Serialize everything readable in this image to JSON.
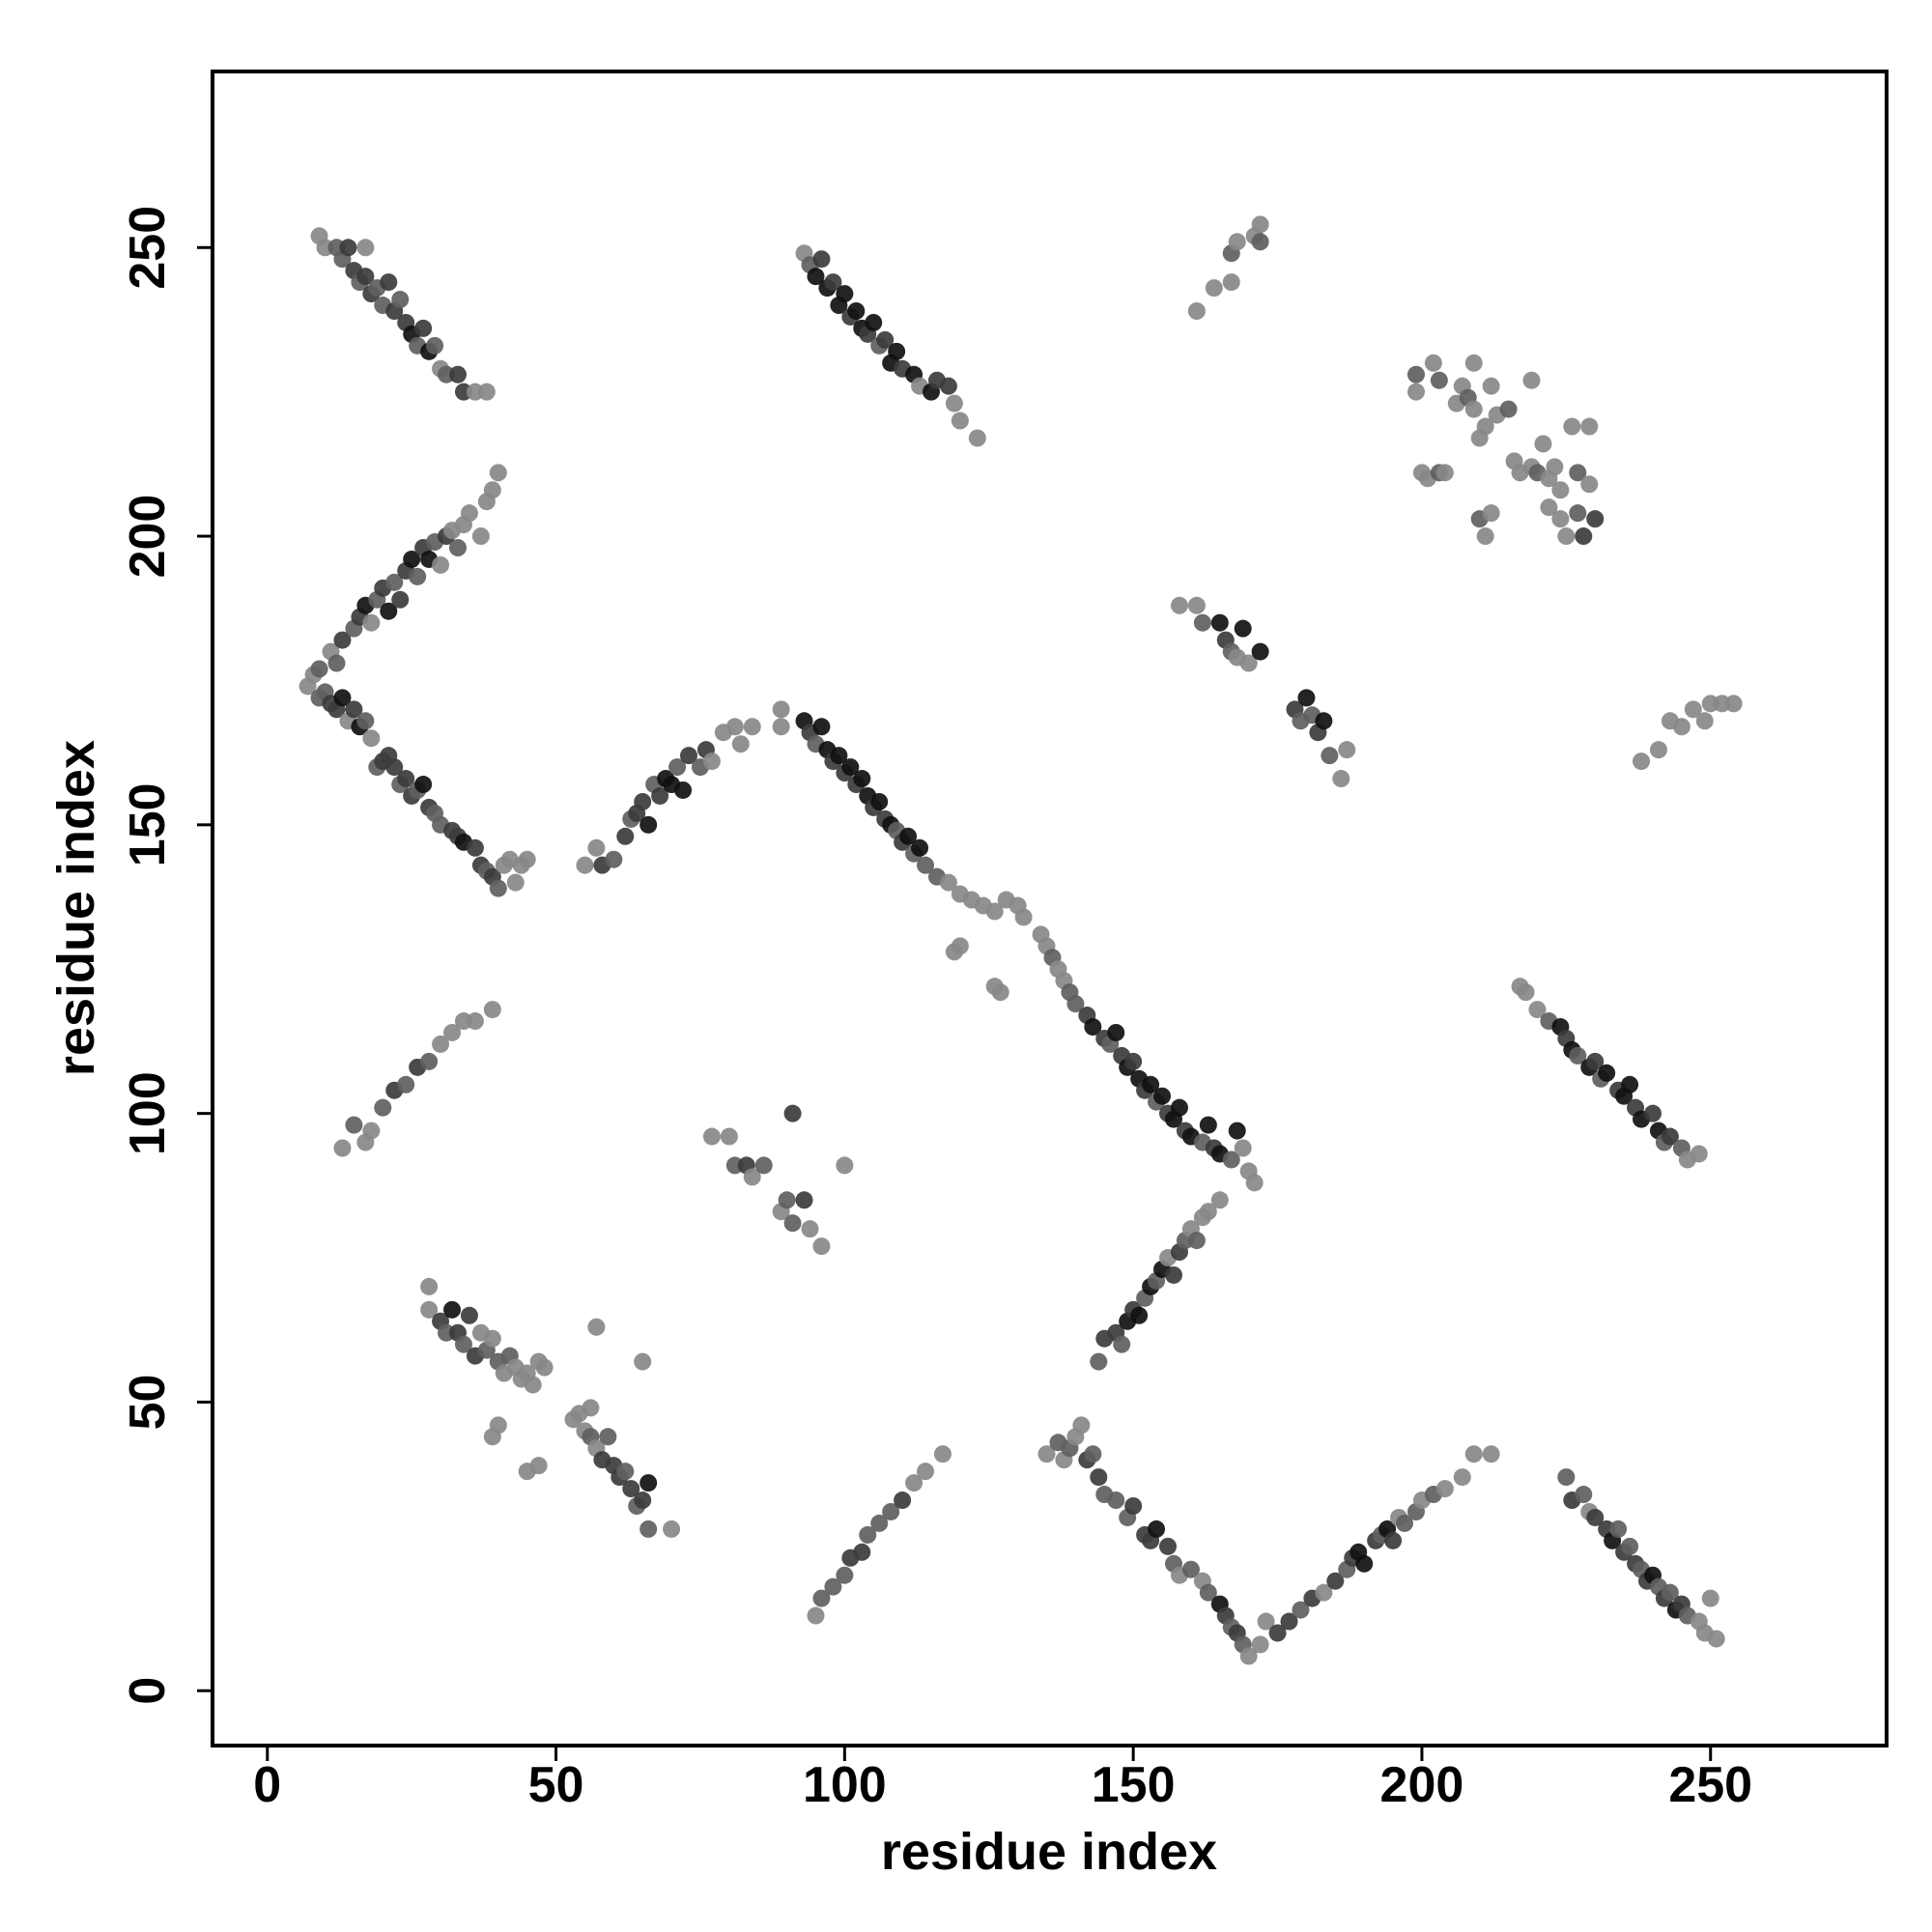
{
  "chart_data": {
    "type": "scatter",
    "xlabel": "residue index",
    "ylabel": "residue index",
    "xlim": [
      -9.5,
      280.5
    ],
    "ylim": [
      -9.5,
      280.5
    ],
    "xticks": [
      0,
      50,
      100,
      150,
      200,
      250
    ],
    "yticks": [
      0,
      50,
      100,
      150,
      200,
      250
    ],
    "x": [
      9,
      10,
      12,
      13,
      14,
      15,
      16,
      17,
      17,
      18,
      19,
      20,
      21,
      22,
      23,
      24,
      25,
      26,
      27,
      28,
      29,
      30,
      31,
      33,
      34,
      36,
      38,
      93,
      94,
      95,
      96,
      97,
      98,
      99,
      100,
      101,
      102,
      103,
      104,
      105,
      106,
      107,
      108,
      109,
      110,
      112,
      113,
      115,
      116,
      118,
      119,
      120,
      123,
      161,
      164,
      167,
      167,
      168,
      171,
      172,
      172,
      199,
      199,
      200,
      201,
      202,
      203,
      203,
      204,
      206,
      207,
      208,
      209,
      209,
      210,
      210,
      211,
      211,
      212,
      212,
      213,
      215,
      216,
      217,
      219,
      219,
      220,
      221,
      222,
      222,
      223,
      224,
      224,
      225,
      226,
      227,
      227,
      228,
      229,
      229,
      230,
      7,
      8,
      9,
      10,
      11,
      12,
      13,
      15,
      16,
      17,
      18,
      19,
      20,
      21,
      22,
      23,
      24,
      25,
      26,
      27,
      28,
      29,
      30,
      31,
      32,
      33,
      34,
      35,
      37,
      38,
      39,
      40,
      9,
      11,
      12,
      13,
      14,
      15,
      16,
      17,
      18,
      19,
      20,
      21,
      22,
      23,
      24,
      25,
      26,
      27,
      28,
      29,
      30,
      32,
      33,
      34,
      36,
      37,
      38,
      39,
      40,
      41,
      42,
      43,
      44,
      45,
      55,
      57,
      58,
      60,
      62,
      63,
      64,
      65,
      66,
      67,
      68,
      69,
      70,
      71,
      72,
      73,
      75,
      76,
      77,
      79,
      81,
      82,
      84,
      89,
      89,
      93,
      94,
      95,
      96,
      97,
      98,
      99,
      100,
      101,
      102,
      103,
      104,
      105,
      106,
      107,
      108,
      109,
      110,
      111,
      112,
      113,
      114,
      116,
      118,
      120,
      122,
      124,
      126,
      128,
      130,
      131,
      134,
      135,
      136,
      137,
      138,
      139,
      140,
      142,
      143,
      145,
      146,
      147,
      148,
      149,
      150,
      151,
      152,
      153,
      154,
      155,
      156,
      157,
      158,
      159,
      160,
      162,
      163,
      164,
      165,
      167,
      168,
      169,
      170,
      171,
      119,
      120,
      126,
      127,
      158,
      161,
      162,
      165,
      166,
      167,
      168,
      169,
      170,
      172,
      178,
      179,
      180,
      181,
      182,
      183,
      184,
      186,
      187,
      238,
      241,
      243,
      245,
      247,
      249,
      250,
      252,
      254,
      217,
      218,
      220,
      222,
      224,
      225,
      226,
      227,
      229,
      230,
      231,
      232,
      234,
      235,
      236,
      237,
      238,
      240,
      241,
      242,
      243,
      245,
      246,
      248,
      13,
      15,
      17,
      18,
      20,
      22,
      24,
      26,
      28,
      30,
      32,
      34,
      36,
      39,
      77,
      80,
      81,
      83,
      84,
      86,
      89,
      90,
      91,
      91,
      93,
      94,
      96,
      100,
      28,
      28,
      30,
      31,
      32,
      33,
      34,
      35,
      36,
      37,
      38,
      39,
      40,
      41,
      42,
      43,
      44,
      45,
      46,
      47,
      48,
      39,
      40,
      45,
      47,
      53,
      54,
      55,
      56,
      56,
      57,
      57,
      58,
      59,
      60,
      61,
      62,
      63,
      64,
      65,
      66,
      66,
      65,
      70,
      95,
      96,
      98,
      100,
      101,
      103,
      104,
      106,
      108,
      110,
      112,
      114,
      117,
      135,
      137,
      138,
      139,
      140,
      141,
      142,
      143,
      144,
      145,
      147,
      149,
      150,
      152,
      153,
      154,
      156,
      157,
      158,
      160,
      162,
      163,
      165,
      166,
      167,
      168,
      169,
      170,
      172,
      173,
      175,
      177,
      179,
      181,
      183,
      185,
      187,
      188,
      189,
      190,
      192,
      193,
      194,
      195,
      196,
      197,
      199,
      200,
      202,
      204,
      207,
      209,
      212,
      144,
      145,
      147,
      148,
      149,
      150,
      151,
      152,
      153,
      154,
      155,
      156,
      157,
      158,
      159,
      160,
      161,
      162,
      163,
      165,
      225,
      226,
      228,
      229,
      230,
      232,
      233,
      234,
      235,
      236,
      237,
      238,
      239,
      240,
      241,
      242,
      243,
      244,
      245,
      246,
      248,
      249,
      251,
      250
    ],
    "y": [
      252,
      250,
      250,
      248,
      250,
      246,
      244,
      245,
      250,
      242,
      243,
      240,
      244,
      239,
      241,
      237,
      235,
      233,
      236,
      232,
      233,
      229,
      228,
      228,
      225,
      225,
      225,
      249,
      247,
      245,
      248,
      243,
      244,
      240,
      242,
      238,
      239,
      236,
      235,
      237,
      233,
      234,
      230,
      232,
      229,
      228,
      226,
      225,
      227,
      226,
      223,
      220,
      217,
      239,
      243,
      244,
      249,
      251,
      252,
      254,
      251,
      228,
      225,
      211,
      210,
      230,
      227,
      211,
      211,
      223,
      226,
      224,
      222,
      230,
      203,
      217,
      219,
      200,
      204,
      226,
      221,
      222,
      213,
      211,
      227,
      212,
      211,
      216,
      210,
      205,
      212,
      203,
      208,
      200,
      219,
      211,
      204,
      200,
      219,
      209,
      203,
      174,
      176,
      177,
      173,
      180,
      178,
      182,
      184,
      186,
      188,
      185,
      189,
      191,
      187,
      192,
      189,
      194,
      196,
      193,
      198,
      196,
      199,
      195,
      200,
      201,
      198,
      202,
      204,
      200,
      206,
      208,
      211,
      172,
      171,
      170,
      172,
      168,
      170,
      167,
      168,
      165,
      160,
      161,
      162,
      160,
      157,
      158,
      155,
      156,
      157,
      153,
      152,
      150,
      149,
      148,
      147,
      146,
      143,
      142,
      141,
      139,
      143,
      144,
      140,
      143,
      144,
      143,
      146,
      143,
      144,
      148,
      151,
      152,
      154,
      150,
      157,
      155,
      158,
      157,
      160,
      156,
      162,
      160,
      163,
      161,
      166,
      167,
      164,
      167,
      170,
      167,
      168,
      166,
      164,
      167,
      163,
      161,
      162,
      159,
      160,
      157,
      158,
      155,
      153,
      154,
      151,
      150,
      149,
      147,
      148,
      145,
      146,
      143,
      141,
      140,
      138,
      137,
      136,
      135,
      137,
      136,
      134,
      131,
      129,
      127,
      125,
      123,
      121,
      119,
      117,
      115,
      113,
      112,
      114,
      110,
      108,
      109,
      106,
      104,
      105,
      102,
      103,
      100,
      99,
      101,
      97,
      96,
      95,
      98,
      94,
      93,
      92,
      97,
      94,
      90,
      88,
      128,
      129,
      122,
      121,
      188,
      188,
      185,
      185,
      182,
      180,
      179,
      184,
      178,
      180,
      170,
      168,
      172,
      169,
      166,
      168,
      162,
      158,
      163,
      161,
      163,
      168,
      167,
      170,
      168,
      171,
      171,
      171,
      122,
      121,
      118,
      116,
      115,
      113,
      111,
      110,
      108,
      109,
      106,
      107,
      104,
      103,
      105,
      101,
      99,
      100,
      97,
      95,
      96,
      94,
      92,
      93,
      94,
      98,
      95,
      97,
      101,
      104,
      105,
      108,
      109,
      112,
      114,
      116,
      116,
      118,
      96,
      96,
      91,
      91,
      89,
      91,
      83,
      85,
      81,
      100,
      85,
      80,
      77,
      91,
      70,
      66,
      64,
      62,
      66,
      62,
      60,
      65,
      58,
      62,
      59,
      61,
      57,
      55,
      58,
      56,
      54,
      55,
      53,
      57,
      56,
      44,
      46,
      38,
      39,
      47,
      48,
      45,
      49,
      44,
      42,
      63,
      40,
      44,
      39,
      37,
      38,
      35,
      32,
      33,
      28,
      36,
      57,
      28,
      13,
      16,
      18,
      20,
      23,
      24,
      27,
      29,
      31,
      33,
      36,
      38,
      41,
      41,
      43,
      40,
      42,
      44,
      46,
      40,
      41,
      37,
      34,
      33,
      30,
      32,
      27,
      26,
      28,
      25,
      22,
      20,
      21,
      19,
      17,
      15,
      13,
      11,
      10,
      8,
      6,
      8,
      12,
      10,
      12,
      14,
      16,
      17,
      19,
      21,
      23,
      24,
      22,
      26,
      27,
      28,
      26,
      30,
      29,
      31,
      33,
      34,
      35,
      37,
      41,
      41,
      57,
      61,
      62,
      60,
      64,
      66,
      65,
      68,
      70,
      71,
      73,
      75,
      72,
      76,
      78,
      80,
      78,
      82,
      83,
      85,
      37,
      33,
      34,
      31,
      30,
      28,
      26,
      28,
      24,
      25,
      22,
      21,
      19,
      20,
      18,
      16,
      17,
      14,
      15,
      13,
      12,
      10,
      9,
      16
    ],
    "colors": [
      "#888",
      "#888",
      "#606060",
      "#606060",
      "#3c3c3c",
      "#3c3c3c",
      "#606060",
      "#3c3c3c",
      "#888",
      "#3c3c3c",
      "#606060",
      "#606060",
      "#3c3c3c",
      "#3c3c3c",
      "#606060",
      "#3c3c3c",
      "#111",
      "#606060",
      "#3c3c3c",
      "#111",
      "#606060",
      "#888",
      "#606060",
      "#3c3c3c",
      "#3c3c3c",
      "#888",
      "#888",
      "#888",
      "#606060",
      "#111",
      "#3c3c3c",
      "#111",
      "#3c3c3c",
      "#111",
      "#111",
      "#3c3c3c",
      "#111",
      "#111",
      "#3c3c3c",
      "#111",
      "#606060",
      "#3c3c3c",
      "#111",
      "#111",
      "#3c3c3c",
      "#111",
      "#888",
      "#111",
      "#3c3c3c",
      "#3c3c3c",
      "#888",
      "#888",
      "#888",
      "#888",
      "#888",
      "#888",
      "#606060",
      "#888",
      "#888",
      "#888",
      "#606060",
      "#606060",
      "#888",
      "#888",
      "#888",
      "#888",
      "#606060",
      "#606060",
      "#888",
      "#888",
      "#888",
      "#606060",
      "#888",
      "#888",
      "#606060",
      "#888",
      "#888",
      "#888",
      "#888",
      "#888",
      "#888",
      "#606060",
      "#888",
      "#888",
      "#888",
      "#888",
      "#606060",
      "#888",
      "#888",
      "#888",
      "#888",
      "#888",
      "#888",
      "#888",
      "#888",
      "#606060",
      "#606060",
      "#3c3c3c",
      "#888",
      "#888",
      "#3c3c3c",
      "#888",
      "#888",
      "#606060",
      "#606060",
      "#888",
      "#606060",
      "#3c3c3c",
      "#606060",
      "#3c3c3c",
      "#111",
      "#888",
      "#606060",
      "#3c3c3c",
      "#111",
      "#606060",
      "#3c3c3c",
      "#3c3c3c",
      "#111",
      "#606060",
      "#3c3c3c",
      "#111",
      "#606060",
      "#888",
      "#3c3c3c",
      "#888",
      "#606060",
      "#888",
      "#888",
      "#888",
      "#888",
      "#888",
      "#888",
      "#606060",
      "#3c3c3c",
      "#3c3c3c",
      "#111",
      "#888",
      "#3c3c3c",
      "#111",
      "#606060",
      "#888",
      "#606060",
      "#3c3c3c",
      "#3c3c3c",
      "#3c3c3c",
      "#606060",
      "#3c3c3c",
      "#3c3c3c",
      "#606060",
      "#111",
      "#3c3c3c",
      "#606060",
      "#606060",
      "#3c3c3c",
      "#3c3c3c",
      "#111",
      "#3c3c3c",
      "#3c3c3c",
      "#606060",
      "#3c3c3c",
      "#606060",
      "#888",
      "#888",
      "#888",
      "#888",
      "#888",
      "#888",
      "#888",
      "#3c3c3c",
      "#606060",
      "#3c3c3c",
      "#606060",
      "#3c3c3c",
      "#3c3c3c",
      "#111",
      "#606060",
      "#3c3c3c",
      "#111",
      "#111",
      "#606060",
      "#111",
      "#3c3c3c",
      "#606060",
      "#3c3c3c",
      "#888",
      "#888",
      "#888",
      "#888",
      "#888",
      "#888",
      "#888",
      "#111",
      "#3c3c3c",
      "#606060",
      "#111",
      "#111",
      "#3c3c3c",
      "#111",
      "#3c3c3c",
      "#111",
      "#3c3c3c",
      "#111",
      "#111",
      "#3c3c3c",
      "#111",
      "#3c3c3c",
      "#111",
      "#606060",
      "#3c3c3c",
      "#111",
      "#606060",
      "#111",
      "#606060",
      "#606060",
      "#888",
      "#888",
      "#888",
      "#888",
      "#888",
      "#888",
      "#888",
      "#888",
      "#888",
      "#888",
      "#606060",
      "#888",
      "#888",
      "#606060",
      "#606060",
      "#3c3c3c",
      "#111",
      "#3c3c3c",
      "#606060",
      "#111",
      "#3c3c3c",
      "#111",
      "#3c3c3c",
      "#111",
      "#3c3c3c",
      "#111",
      "#606060",
      "#111",
      "#3c3c3c",
      "#111",
      "#111",
      "#3c3c3c",
      "#111",
      "#606060",
      "#111",
      "#3c3c3c",
      "#111",
      "#606060",
      "#111",
      "#888",
      "#888",
      "#888",
      "#888",
      "#888",
      "#888",
      "#888",
      "#888",
      "#888",
      "#606060",
      "#111",
      "#3c3c3c",
      "#606060",
      "#888",
      "#111",
      "#888",
      "#111",
      "#3c3c3c",
      "#606060",
      "#111",
      "#606060",
      "#3c3c3c",
      "#111",
      "#606060",
      "#888",
      "#888",
      "#888",
      "#888",
      "#888",
      "#888",
      "#888",
      "#888",
      "#888",
      "#888",
      "#888",
      "#888",
      "#888",
      "#888",
      "#606060",
      "#111",
      "#3c3c3c",
      "#111",
      "#606060",
      "#111",
      "#3c3c3c",
      "#606060",
      "#111",
      "#3c3c3c",
      "#111",
      "#111",
      "#3c3c3c",
      "#111",
      "#3c3c3c",
      "#111",
      "#606060",
      "#3c3c3c",
      "#606060",
      "#888",
      "#888",
      "#888",
      "#606060",
      "#888",
      "#888",
      "#606060",
      "#3c3c3c",
      "#606060",
      "#3c3c3c",
      "#606060",
      "#888",
      "#888",
      "#888",
      "#888",
      "#888",
      "#888",
      "#888",
      "#606060",
      "#3c3c3c",
      "#888",
      "#606060",
      "#888",
      "#606060",
      "#606060",
      "#3c3c3c",
      "#3c3c3c",
      "#888",
      "#888",
      "#888",
      "#888",
      "#888",
      "#3c3c3c",
      "#606060",
      "#111",
      "#3c3c3c",
      "#606060",
      "#3c3c3c",
      "#3c3c3c",
      "#888",
      "#606060",
      "#888",
      "#606060",
      "#888",
      "#606060",
      "#888",
      "#888",
      "#888",
      "#888",
      "#888",
      "#888",
      "#888",
      "#888",
      "#888",
      "#888",
      "#888",
      "#888",
      "#888",
      "#888",
      "#606060",
      "#888",
      "#888",
      "#3c3c3c",
      "#606060",
      "#3c3c3c",
      "#3c3c3c",
      "#606060",
      "#3c3c3c",
      "#606060",
      "#3c3c3c",
      "#606060",
      "#111",
      "#888",
      "#888",
      "#888",
      "#606060",
      "#606060",
      "#606060",
      "#3c3c3c",
      "#3c3c3c",
      "#606060",
      "#606060",
      "#606060",
      "#3c3c3c",
      "#888",
      "#888",
      "#888",
      "#888",
      "#606060",
      "#888",
      "#606060",
      "#888",
      "#888",
      "#3c3c3c",
      "#606060",
      "#3c3c3c",
      "#606060",
      "#606060",
      "#606060",
      "#3c3c3c",
      "#3c3c3c",
      "#3c3c3c",
      "#111",
      "#3c3c3c",
      "#606060",
      "#888",
      "#606060",
      "#888",
      "#606060",
      "#111",
      "#3c3c3c",
      "#606060",
      "#3c3c3c",
      "#606060",
      "#888",
      "#888",
      "#888",
      "#3c3c3c",
      "#3c3c3c",
      "#606060",
      "#3c3c3c",
      "#888",
      "#3c3c3c",
      "#606060",
      "#3c3c3c",
      "#111",
      "#111",
      "#3c3c3c",
      "#606060",
      "#111",
      "#3c3c3c",
      "#888",
      "#606060",
      "#606060",
      "#888",
      "#606060",
      "#888",
      "#888",
      "#888",
      "#888",
      "#606060",
      "#3c3c3c",
      "#3c3c3c",
      "#606060",
      "#111",
      "#3c3c3c",
      "#111",
      "#606060",
      "#111",
      "#606060",
      "#111",
      "#888",
      "#3c3c3c",
      "#3c3c3c",
      "#606060",
      "#888",
      "#606060",
      "#888",
      "#888",
      "#888",
      "#606060",
      "#3c3c3c",
      "#606060",
      "#888",
      "#3c3c3c",
      "#3c3c3c",
      "#111",
      "#606060",
      "#3c3c3c",
      "#606060",
      "#3c3c3c",
      "#606060",
      "#3c3c3c",
      "#111",
      "#606060",
      "#3c3c3c",
      "#606060",
      "#111",
      "#3c3c3c",
      "#606060",
      "#888",
      "#888",
      "#888",
      "#888"
    ]
  }
}
